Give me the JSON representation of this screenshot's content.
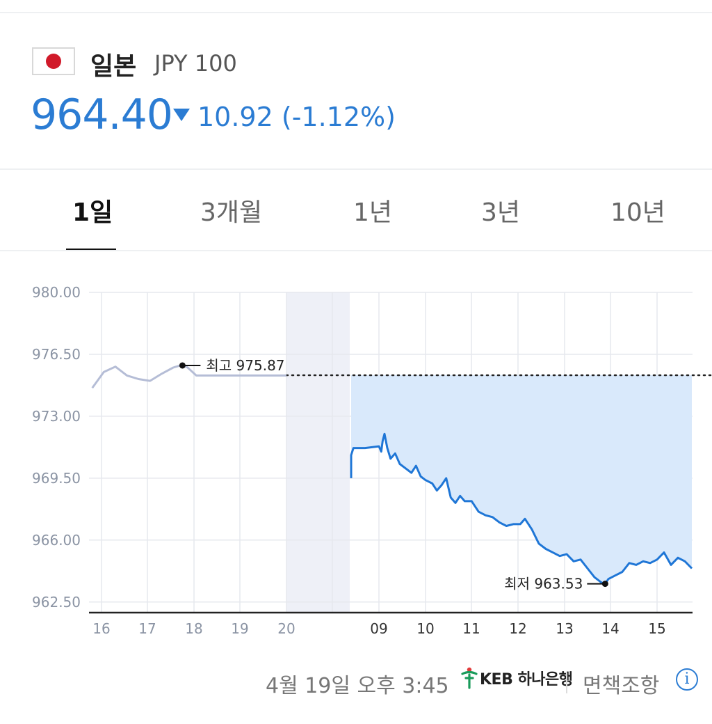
{
  "header": {
    "country": "일본",
    "currency_code": "JPY 100",
    "price": "964.40",
    "change_direction": "down",
    "change": "10.92 (-1.12%)",
    "accent_color": "#2b7cd3"
  },
  "tabs": [
    {
      "label": "1일",
      "active": true
    },
    {
      "label": "3개월",
      "active": false
    },
    {
      "label": "1년",
      "active": false
    },
    {
      "label": "3년",
      "active": false
    },
    {
      "label": "10년",
      "active": false
    }
  ],
  "chart_data": {
    "type": "line",
    "ylim": [
      961.9,
      980.0
    ],
    "yticks": [
      "980.00",
      "976.50",
      "973.00",
      "969.50",
      "966.00",
      "962.50"
    ],
    "ytick_values": [
      980.0,
      976.5,
      973.0,
      969.5,
      966.0,
      962.5
    ],
    "xtick_labels": [
      "16",
      "17",
      "18",
      "19",
      "20",
      "moon-icon",
      "09",
      "10",
      "11",
      "12",
      "13",
      "14",
      "15"
    ],
    "grid": true,
    "previous_close": 975.32,
    "overnight_band": "20 to 09",
    "series": [
      {
        "session": "previous",
        "color": "#b5bdd6",
        "x": [
          15.8,
          16.05,
          16.3,
          16.55,
          16.8,
          17.05,
          17.3,
          17.55,
          17.7,
          17.85,
          18.05,
          18.4,
          19.0,
          19.5,
          20.0
        ],
        "y": [
          974.6,
          975.5,
          975.8,
          975.3,
          975.1,
          975.0,
          975.4,
          975.75,
          975.87,
          975.78,
          975.3,
          975.3,
          975.3,
          975.3,
          975.3
        ]
      },
      {
        "session": "today",
        "color": "#1f76d6",
        "x": [
          8.4,
          8.4,
          8.45,
          8.7,
          9.0,
          9.05,
          9.08,
          9.12,
          9.18,
          9.25,
          9.35,
          9.45,
          9.6,
          9.7,
          9.8,
          9.9,
          10.0,
          10.15,
          10.25,
          10.35,
          10.45,
          10.55,
          10.65,
          10.75,
          10.85,
          11.0,
          11.15,
          11.3,
          11.45,
          11.6,
          11.75,
          11.9,
          12.05,
          12.15,
          12.3,
          12.45,
          12.6,
          12.75,
          12.9,
          13.05,
          13.2,
          13.35,
          13.5,
          13.65,
          13.8,
          13.88,
          13.95,
          14.1,
          14.25,
          14.4,
          14.55,
          14.7,
          14.85,
          15.0,
          15.15,
          15.3,
          15.45,
          15.6,
          15.75
        ],
        "y": [
          969.5,
          970.8,
          971.2,
          971.2,
          971.3,
          971.0,
          971.6,
          972.0,
          971.2,
          970.6,
          970.9,
          970.3,
          970.0,
          969.8,
          970.2,
          969.6,
          969.4,
          969.2,
          968.8,
          969.1,
          969.5,
          968.4,
          968.1,
          968.5,
          968.2,
          968.2,
          967.6,
          967.4,
          967.3,
          967.0,
          966.8,
          966.9,
          966.9,
          967.2,
          966.6,
          965.8,
          965.5,
          965.3,
          965.1,
          965.2,
          964.8,
          964.9,
          964.4,
          963.9,
          963.6,
          963.53,
          963.8,
          964.0,
          964.2,
          964.7,
          964.6,
          964.8,
          964.7,
          964.9,
          965.3,
          964.6,
          965.0,
          964.8,
          964.4
        ]
      }
    ],
    "annotations": {
      "high": {
        "label": "최고 975.87",
        "x": 17.75,
        "y": 975.87
      },
      "low": {
        "label": "최저 963.53",
        "x": 13.88,
        "y": 963.53
      }
    }
  },
  "footer": {
    "timestamp": "4월 19일 오후 3:45",
    "bank_name": "KEB 하나은행",
    "disclaimer": "면책조항",
    "info_symbol": "i"
  }
}
